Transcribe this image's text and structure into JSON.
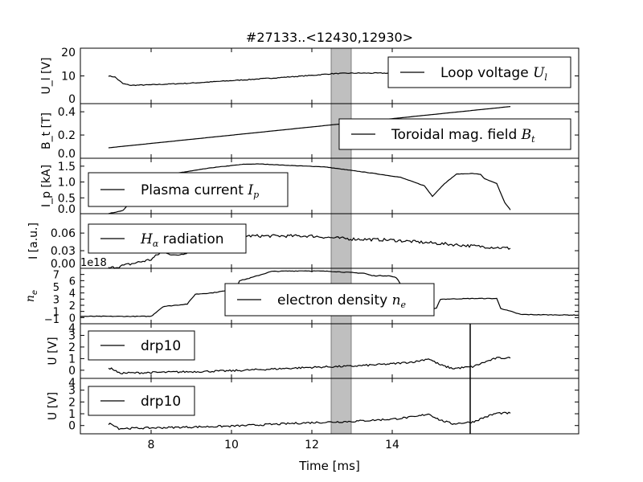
{
  "chart_data": {
    "type": "line",
    "title": "#27133..<12430,12930>",
    "xlabel": "Time [ms]",
    "xlim": [
      6.24,
      18.64
    ],
    "xticks": [
      8,
      10,
      12,
      14
    ],
    "highlight_span": [
      12.48,
      12.98
    ],
    "highlight_color": "#bfbfbf",
    "panels": [
      {
        "ylabel": "U_l [V]",
        "ylabel_main": "U",
        "ylabel_sub": "l",
        "ylabel_unit": " [V]",
        "ylim": [
          0,
          20
        ],
        "yticks": [
          "0",
          "10",
          "20"
        ],
        "ytick_values": [
          0,
          10,
          20
        ],
        "legend": "Loop voltage ",
        "legend_math": "U",
        "legend_sub": "l",
        "x": [
          6.94,
          7.1,
          7.3,
          7.5,
          8,
          9,
          10,
          11,
          12,
          12.5,
          13,
          14,
          15,
          15.5
        ],
        "y": [
          10,
          9.6,
          7.2,
          6.6,
          6.8,
          7.4,
          8.3,
          9.2,
          10.2,
          10.8,
          11,
          11,
          11,
          11
        ],
        "noise": 0.15
      },
      {
        "ylabel": "B_t [T]",
        "ylabel_main": "B",
        "ylabel_sub": "t",
        "ylabel_unit": " [T]",
        "ylim": [
          0,
          0.47
        ],
        "yticks": [
          "0.0",
          "0.2",
          "0.4"
        ],
        "ytick_values": [
          0,
          0.2,
          0.4
        ],
        "legend": "Toroidal mag. field ",
        "legend_math": "B",
        "legend_sub": "t",
        "x": [
          6.94,
          16.94
        ],
        "y": [
          0.09,
          0.445
        ],
        "noise": 0
      },
      {
        "ylabel": "I_p [kA]",
        "ylabel_main": "I",
        "ylabel_sub": "p",
        "ylabel_unit": " [kA]",
        "ylim": [
          0,
          1.75
        ],
        "yticks": [
          "0.0",
          "0.5",
          "1.0",
          "1.5"
        ],
        "ytick_values": [
          0,
          0.5,
          1.0,
          1.5
        ],
        "legend": "Plasma current ",
        "legend_math": "I",
        "legend_sub": "p",
        "x": [
          6.94,
          7.3,
          7.8,
          8.5,
          9.5,
          10.3,
          10.7,
          11.5,
          12.3,
          12.9,
          13.5,
          14.2,
          14.8,
          15.0,
          15.3,
          15.6,
          16.0,
          16.2,
          16.3,
          16.6,
          16.8,
          16.94
        ],
        "y": [
          0,
          0.1,
          0.8,
          1.25,
          1.45,
          1.56,
          1.57,
          1.52,
          1.48,
          1.38,
          1.28,
          1.15,
          0.88,
          0.55,
          0.95,
          1.25,
          1.27,
          1.24,
          1.1,
          0.95,
          0.35,
          0.12
        ],
        "noise": 0.005
      },
      {
        "ylabel": "I [a.u.]",
        "ylabel_main": "I [a.u.]",
        "ylabel_sub": "",
        "ylabel_unit": "",
        "ylim": [
          0,
          0.093
        ],
        "yticks": [
          "0.00",
          "0.03",
          "0.06"
        ],
        "ytick_values": [
          0,
          0.03,
          0.06
        ],
        "legend": "",
        "legend_math": "H",
        "legend_sub": "α",
        "legend_tail": " radiation",
        "x": [
          6.94,
          7.2,
          7.6,
          8.0,
          8.3,
          8.6,
          9.0,
          9.6,
          10,
          11,
          12,
          12.5,
          13,
          14,
          15,
          16,
          16.94
        ],
        "y": [
          0.0,
          0.003,
          0.009,
          0.015,
          0.03,
          0.021,
          0.03,
          0.046,
          0.055,
          0.055,
          0.055,
          0.052,
          0.05,
          0.048,
          0.043,
          0.038,
          0.034
        ],
        "noise": 0.0025
      },
      {
        "ylabel": "n_e",
        "ylabel_main": "n",
        "ylabel_sub": "e",
        "ylabel_unit": "",
        "ylim": [
          -1,
          8
        ],
        "yticks": [
          "−1",
          "0",
          "1",
          "2",
          "3",
          "4",
          "5",
          "6",
          "7"
        ],
        "ytick_values": [
          -1,
          0,
          1,
          2,
          3,
          4,
          5,
          6,
          7
        ],
        "offset_label": "1e18",
        "legend": "electron density ",
        "legend_math": "n",
        "legend_sub": "e",
        "x": [
          6.24,
          8.0,
          8.3,
          8.9,
          9.1,
          9.5,
          9.9,
          10.1,
          10.2,
          10.4,
          10.6,
          11.0,
          11.8,
          12.5,
          13.0,
          13.3,
          13.5,
          13.9,
          14.1,
          14.2,
          14.9,
          15.1,
          15.2,
          15.3,
          16.0,
          16.6,
          16.7,
          17.2,
          18.64
        ],
        "y": [
          0.2,
          0.2,
          1.8,
          2.2,
          3.8,
          4.0,
          4.4,
          4.6,
          6.0,
          6.3,
          6.7,
          7.5,
          7.6,
          7.5,
          7.3,
          7.2,
          6.8,
          6.8,
          6.5,
          5.5,
          1.2,
          1.5,
          3.0,
          3.0,
          3.1,
          3.1,
          1.5,
          0.5,
          0.4
        ],
        "noise": 0.05
      },
      {
        "ylabel": "U [V]",
        "ylabel_main": "U [V]",
        "ylabel_sub": "",
        "ylabel_unit": "",
        "ylim": [
          -0.7,
          4
        ],
        "yticks": [
          "0",
          "1",
          "2",
          "3",
          "4"
        ],
        "ytick_values": [
          0,
          1,
          2,
          3,
          4
        ],
        "legend": "drp10",
        "legend_math": "",
        "legend_sub": "",
        "vline": 15.94,
        "x": [
          6.94,
          7.05,
          7.2,
          8,
          10,
          12,
          13,
          14,
          14.6,
          14.9,
          15.2,
          15.5,
          16.0,
          16.3,
          16.6,
          16.94
        ],
        "y": [
          0.15,
          0.1,
          -0.25,
          -0.2,
          -0.05,
          0.25,
          0.35,
          0.55,
          0.75,
          1.0,
          0.45,
          0.15,
          0.3,
          0.7,
          1.05,
          1.05
        ],
        "noise": 0.08
      },
      {
        "ylabel": "U [V]",
        "ylabel_main": "U [V]",
        "ylabel_sub": "",
        "ylabel_unit": "",
        "ylim": [
          -0.7,
          4
        ],
        "yticks": [
          "0",
          "1",
          "2",
          "3",
          "4"
        ],
        "ytick_values": [
          0,
          1,
          2,
          3,
          4
        ],
        "legend": "drp10",
        "legend_math": "",
        "legend_sub": "",
        "vline": 15.94,
        "x": [
          6.94,
          7.05,
          7.2,
          8,
          10,
          12,
          13,
          14,
          14.6,
          14.9,
          15.2,
          15.5,
          16.0,
          16.3,
          16.6,
          16.94
        ],
        "y": [
          0.15,
          0.1,
          -0.25,
          -0.2,
          -0.05,
          0.25,
          0.35,
          0.55,
          0.75,
          1.0,
          0.45,
          0.15,
          0.3,
          0.7,
          1.05,
          1.05
        ],
        "noise": 0.08
      }
    ]
  }
}
